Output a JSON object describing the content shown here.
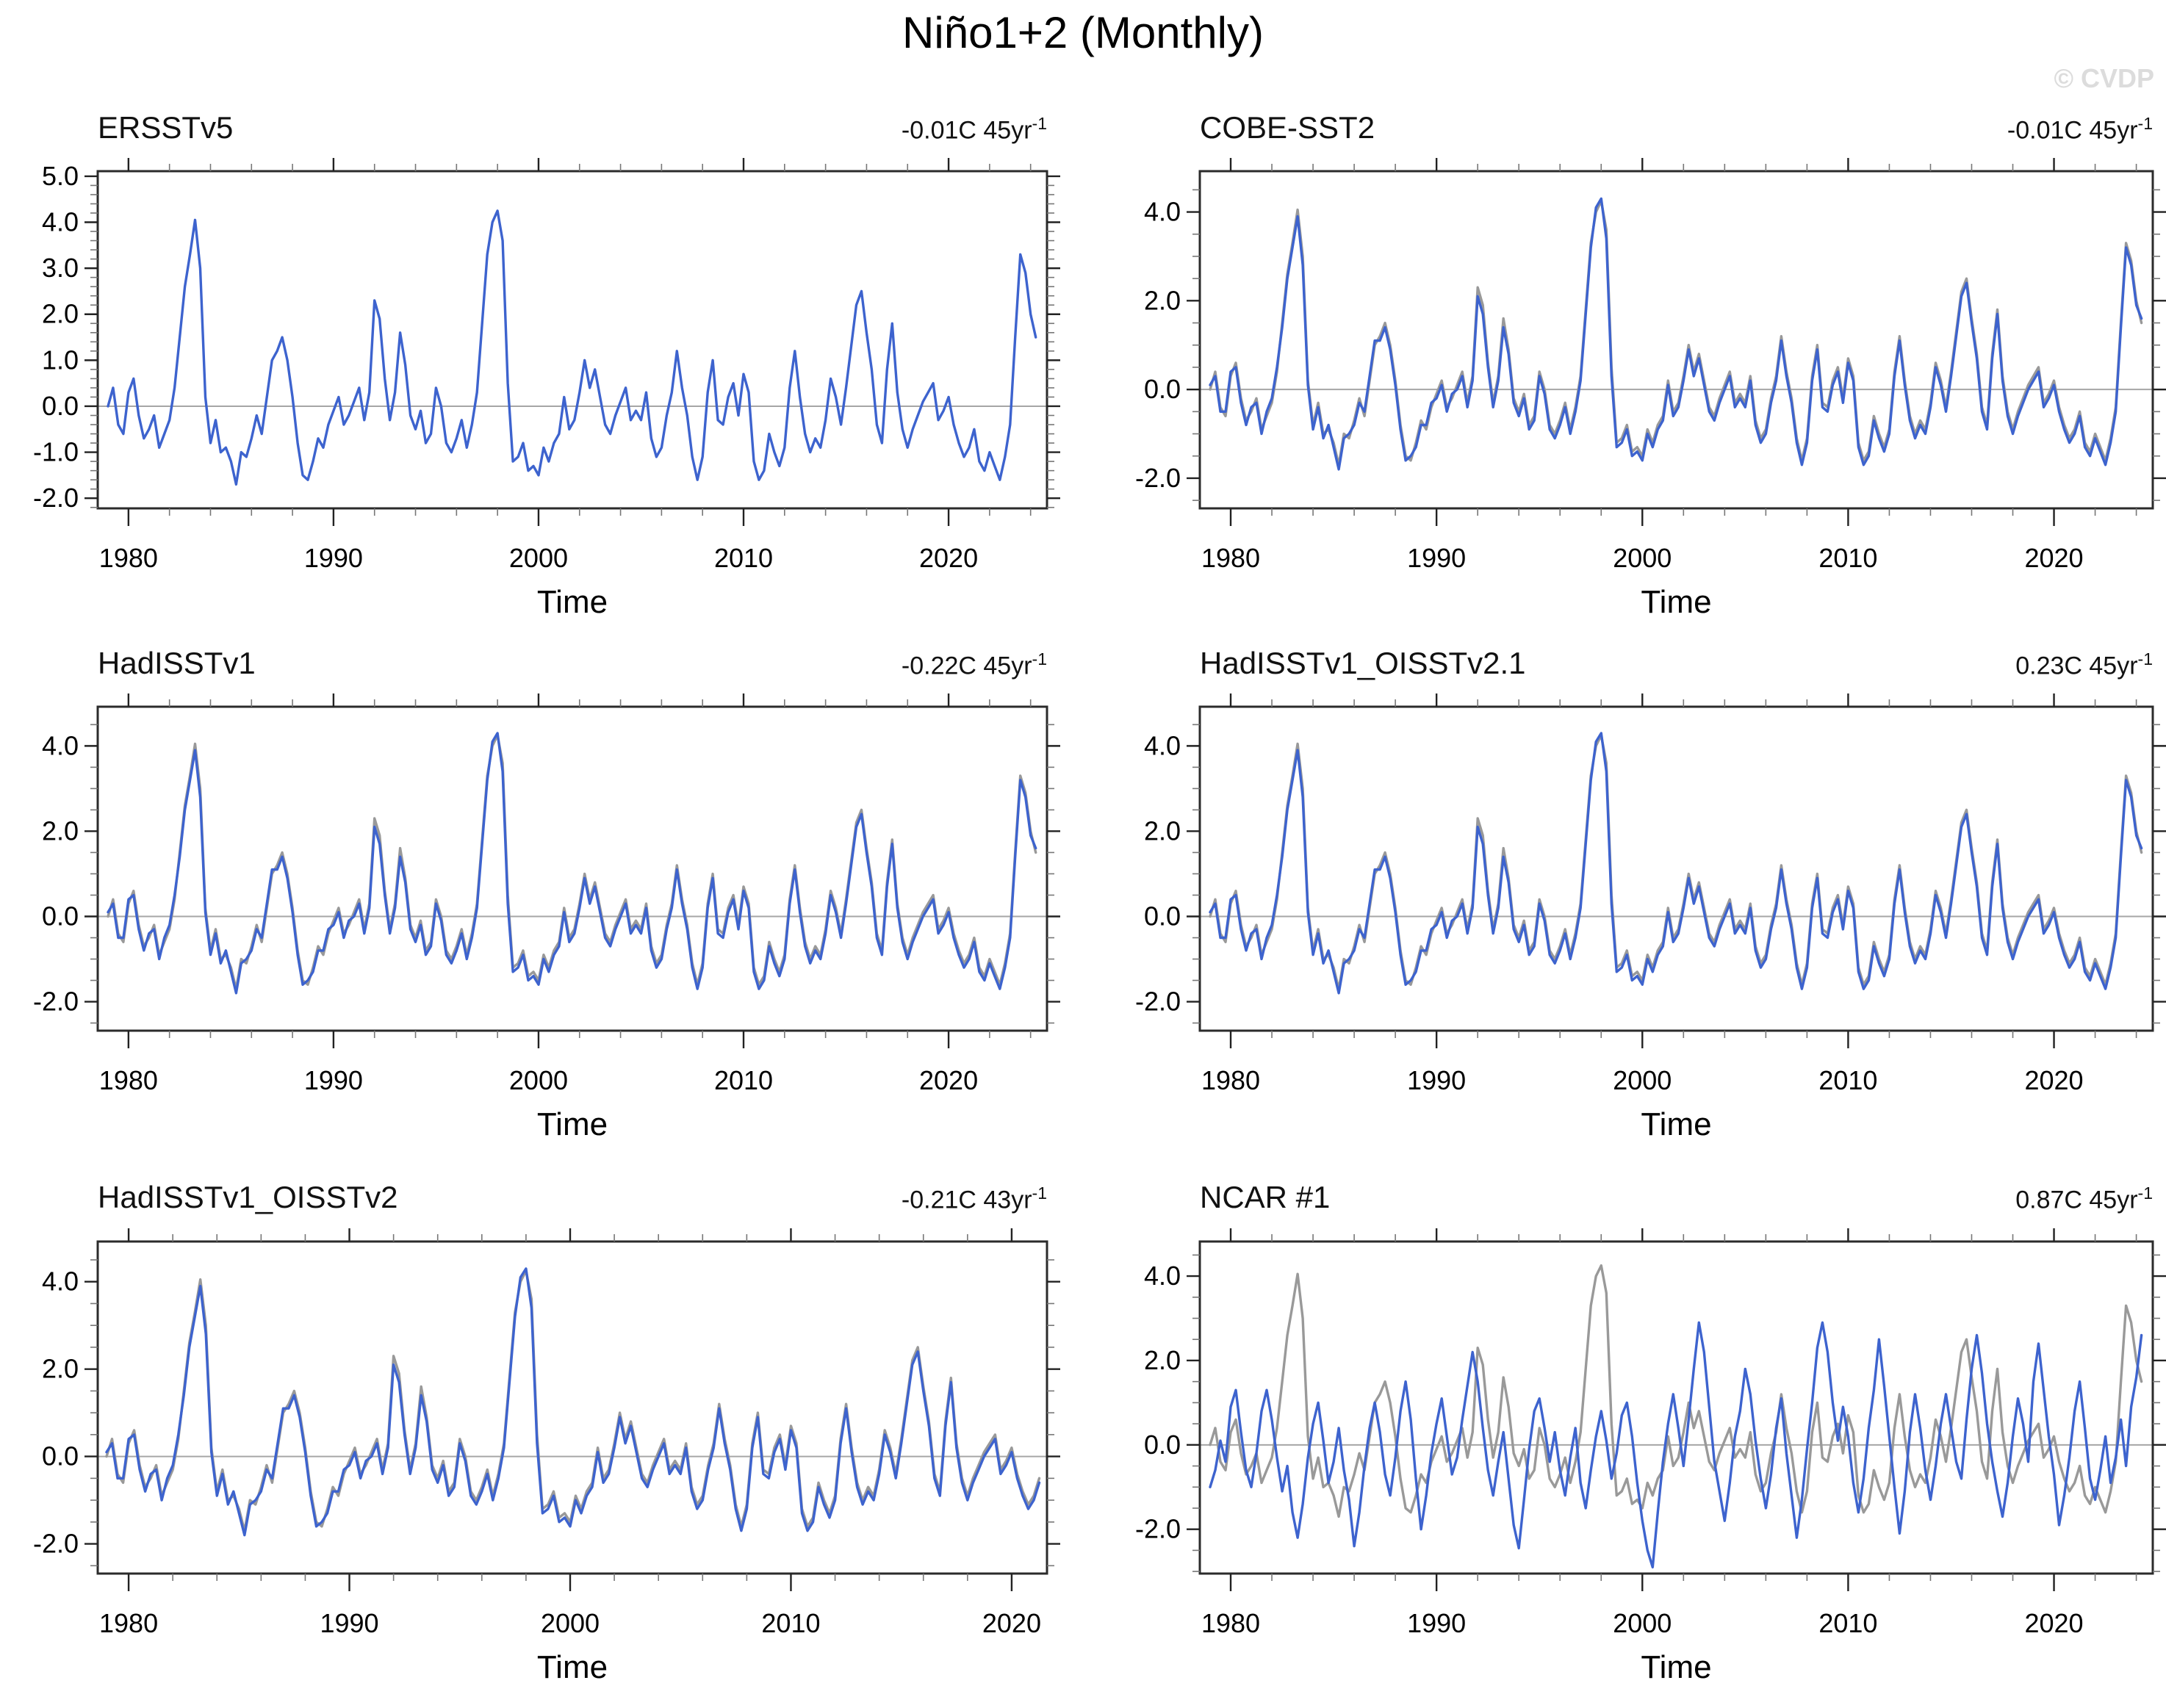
{
  "title": "Niño1+2 (Monthly)",
  "watermark": "© CVDP",
  "xlabel": "Time",
  "colors": {
    "line_blue": "#3D63CE",
    "line_gray": "#999999",
    "zero_line": "#a6a6a6",
    "frame": "#2b2b2b",
    "major_tick": "#222222",
    "minor_tick": "#777777",
    "tick_label": "#000000",
    "watermark": "#dcdcdc"
  },
  "chart_data": {
    "type": "line",
    "x_start": 1979.0,
    "x_step": 0.25,
    "x_unit": "year",
    "y_unit": "C",
    "series": {
      "reference_obs": [
        0.0,
        0.4,
        -0.4,
        -0.6,
        0.3,
        0.6,
        -0.2,
        -0.7,
        -0.5,
        -0.2,
        -0.9,
        -0.6,
        -0.3,
        0.4,
        1.5,
        2.6,
        3.3,
        4.05,
        3.0,
        0.2,
        -0.8,
        -0.3,
        -1.0,
        -0.9,
        -1.2,
        -1.7,
        -1.0,
        -1.1,
        -0.7,
        -0.2,
        -0.6,
        0.2,
        1.0,
        1.2,
        1.5,
        1.0,
        0.2,
        -0.8,
        -1.5,
        -1.6,
        -1.2,
        -0.7,
        -0.9,
        -0.4,
        -0.1,
        0.2,
        -0.4,
        -0.2,
        0.1,
        0.4,
        -0.3,
        0.3,
        2.3,
        1.9,
        0.6,
        -0.3,
        0.3,
        1.6,
        0.9,
        -0.2,
        -0.5,
        -0.1,
        -0.8,
        -0.6,
        0.4,
        0.0,
        -0.8,
        -1.0,
        -0.7,
        -0.3,
        -0.9,
        -0.4,
        0.3,
        1.8,
        3.3,
        4.0,
        4.25,
        3.6,
        0.5,
        -1.2,
        -1.1,
        -0.8,
        -1.4,
        -1.3,
        -1.5,
        -0.9,
        -1.2,
        -0.8,
        -0.6,
        0.2,
        -0.5,
        -0.3,
        0.3,
        1.0,
        0.4,
        0.8,
        0.2,
        -0.4,
        -0.6,
        -0.2,
        0.1,
        0.4,
        -0.3,
        -0.1,
        -0.3,
        0.3,
        -0.7,
        -1.1,
        -0.9,
        -0.2,
        0.3,
        1.2,
        0.4,
        -0.2,
        -1.1,
        -1.6,
        -1.1,
        0.3,
        1.0,
        -0.3,
        -0.4,
        0.2,
        0.5,
        -0.2,
        0.7,
        0.3,
        -1.2,
        -1.6,
        -1.4,
        -0.6,
        -1.0,
        -1.3,
        -0.9,
        0.4,
        1.2,
        0.2,
        -0.6,
        -1.0,
        -0.7,
        -0.9,
        -0.3,
        0.6,
        0.2,
        -0.4,
        0.4,
        1.3,
        2.2,
        2.5,
        1.6,
        0.8,
        -0.4,
        -0.8,
        0.8,
        1.8,
        0.3,
        -0.5,
        -0.9,
        -0.5,
        -0.2,
        0.1,
        0.3,
        0.5,
        -0.3,
        -0.1,
        0.2,
        -0.4,
        -0.8,
        -1.1,
        -0.9,
        -0.5,
        -1.2,
        -1.4,
        -1.0,
        -1.3,
        -1.6,
        -1.1,
        -0.4,
        1.5,
        3.3,
        2.9,
        2.0,
        1.5
      ],
      "obs_variant": [
        0.1,
        0.3,
        -0.5,
        -0.5,
        0.4,
        0.5,
        -0.3,
        -0.8,
        -0.4,
        -0.3,
        -1.0,
        -0.5,
        -0.2,
        0.5,
        1.4,
        2.5,
        3.2,
        3.9,
        2.8,
        0.1,
        -0.9,
        -0.4,
        -1.1,
        -0.8,
        -1.3,
        -1.8,
        -1.1,
        -1.0,
        -0.8,
        -0.3,
        -0.5,
        0.3,
        1.1,
        1.1,
        1.4,
        0.9,
        0.1,
        -0.9,
        -1.6,
        -1.5,
        -1.3,
        -0.8,
        -0.8,
        -0.3,
        -0.2,
        0.1,
        -0.5,
        -0.1,
        0.0,
        0.3,
        -0.4,
        0.2,
        2.1,
        1.7,
        0.5,
        -0.4,
        0.2,
        1.4,
        0.8,
        -0.3,
        -0.6,
        -0.2,
        -0.9,
        -0.7,
        0.3,
        -0.1,
        -0.9,
        -1.1,
        -0.8,
        -0.4,
        -1.0,
        -0.5,
        0.2,
        1.7,
        3.2,
        4.1,
        4.3,
        3.4,
        0.3,
        -1.3,
        -1.2,
        -0.9,
        -1.5,
        -1.4,
        -1.6,
        -1.0,
        -1.3,
        -0.9,
        -0.7,
        0.1,
        -0.6,
        -0.4,
        0.2,
        0.9,
        0.3,
        0.7,
        0.1,
        -0.5,
        -0.7,
        -0.3,
        0.0,
        0.3,
        -0.4,
        -0.2,
        -0.4,
        0.2,
        -0.8,
        -1.2,
        -1.0,
        -0.3,
        0.2,
        1.1,
        0.3,
        -0.3,
        -1.2,
        -1.7,
        -1.2,
        0.2,
        0.9,
        -0.4,
        -0.5,
        0.1,
        0.4,
        -0.3,
        0.6,
        0.2,
        -1.3,
        -1.7,
        -1.5,
        -0.7,
        -1.1,
        -1.4,
        -1.0,
        0.3,
        1.1,
        0.1,
        -0.7,
        -1.1,
        -0.8,
        -1.0,
        -0.4,
        0.5,
        0.1,
        -0.5,
        0.3,
        1.2,
        2.1,
        2.4,
        1.5,
        0.7,
        -0.5,
        -0.9,
        0.7,
        1.7,
        0.2,
        -0.6,
        -1.0,
        -0.6,
        -0.3,
        0.0,
        0.2,
        0.4,
        -0.4,
        -0.2,
        0.1,
        -0.5,
        -0.9,
        -1.2,
        -1.0,
        -0.6,
        -1.3,
        -1.5,
        -1.1,
        -1.4,
        -1.7,
        -1.2,
        -0.5,
        1.4,
        3.2,
        2.8,
        1.9,
        1.6
      ],
      "ncar1_model": [
        -1.0,
        -0.6,
        0.1,
        -0.4,
        0.9,
        1.3,
        0.3,
        -0.6,
        -1.0,
        -0.2,
        0.8,
        1.3,
        0.6,
        -0.3,
        -1.1,
        -0.5,
        -1.6,
        -2.2,
        -1.4,
        -0.3,
        0.5,
        1.0,
        0.1,
        -0.9,
        -0.4,
        0.4,
        -0.6,
        -1.3,
        -2.4,
        -1.6,
        -0.5,
        0.4,
        1.0,
        0.3,
        -0.7,
        -1.2,
        -0.3,
        0.8,
        1.5,
        0.6,
        -0.8,
        -2.0,
        -1.2,
        -0.2,
        0.5,
        1.1,
        0.2,
        -0.7,
        -0.3,
        0.6,
        1.4,
        2.2,
        1.5,
        0.4,
        -0.6,
        -1.2,
        -0.4,
        0.3,
        -0.8,
        -1.9,
        -2.45,
        -1.3,
        -0.1,
        0.8,
        1.1,
        0.4,
        -0.4,
        0.3,
        -0.6,
        -1.2,
        -0.3,
        0.4,
        -0.9,
        -1.5,
        -0.6,
        0.2,
        0.8,
        0.1,
        -0.8,
        -0.2,
        0.7,
        1.0,
        0.2,
        -0.9,
        -1.8,
        -2.5,
        -2.9,
        -1.6,
        -0.4,
        0.5,
        1.2,
        0.4,
        -0.5,
        0.6,
        1.8,
        2.9,
        2.2,
        0.9,
        -0.4,
        -1.1,
        -1.8,
        -0.9,
        0.2,
        0.8,
        1.8,
        1.2,
        0.1,
        -0.8,
        -1.5,
        -0.7,
        0.4,
        1.1,
        -0.2,
        -1.2,
        -2.2,
        -1.3,
        -0.1,
        1.0,
        2.3,
        2.9,
        2.2,
        1.0,
        0.1,
        0.9,
        0.2,
        -0.9,
        -1.6,
        -0.8,
        0.4,
        1.3,
        2.5,
        1.4,
        0.2,
        -1.0,
        -2.1,
        -1.1,
        0.3,
        1.2,
        0.4,
        -0.6,
        -1.3,
        -0.5,
        0.5,
        1.2,
        0.4,
        -0.4,
        -0.8,
        0.6,
        1.8,
        2.6,
        1.7,
        0.5,
        -0.4,
        -1.1,
        -1.7,
        -0.9,
        0.2,
        1.1,
        0.5,
        -0.4,
        1.5,
        2.4,
        1.3,
        0.2,
        -0.7,
        -1.9,
        -1.2,
        -0.3,
        0.8,
        1.5,
        0.4,
        -0.8,
        -1.3,
        -0.6,
        0.2,
        -0.9,
        -0.3,
        0.6,
        -0.5,
        0.9,
        1.6,
        2.6
      ],
      "blue_series_color": "#3D63CE",
      "gray_series_color": "#999999"
    },
    "panels": [
      {
        "name": "ERSSTv5",
        "trend": "-0.01C 45yr",
        "trend_sup": "-1",
        "blue": "reference_obs",
        "gray": null,
        "xlim": [
          1978.5,
          2024.8
        ],
        "ylim": [
          -2.22,
          5.11
        ],
        "yticks": [
          5,
          4,
          3,
          2,
          1,
          0,
          -1,
          -2
        ],
        "ytick_labels": [
          "5.0",
          "4.0",
          "3.0",
          "2.0",
          "1.0",
          "0.0",
          "-1.0",
          "-2.0"
        ],
        "y_minor_step": 0.2,
        "xticks": [
          1980,
          1990,
          2000,
          2010,
          2020
        ],
        "xtick_labels": [
          "1980",
          "1990",
          "2000",
          "2010",
          "2020"
        ],
        "x_minor_step": 2
      },
      {
        "name": "COBE-SST2",
        "trend": "-0.01C 45yr",
        "trend_sup": "-1",
        "blue": "obs_variant",
        "gray": "reference_obs",
        "xlim": [
          1978.5,
          2024.8
        ],
        "ylim": [
          -2.68,
          4.92
        ],
        "yticks": [
          4,
          2,
          0,
          -2
        ],
        "ytick_labels": [
          "4.0",
          "2.0",
          "0.0",
          "-2.0"
        ],
        "y_minor_step": 0.5,
        "xticks": [
          1980,
          1990,
          2000,
          2010,
          2020
        ],
        "xtick_labels": [
          "1980",
          "1990",
          "2000",
          "2010",
          "2020"
        ],
        "x_minor_step": 2
      },
      {
        "name": "HadISSTv1",
        "trend": "-0.22C 45yr",
        "trend_sup": "-1",
        "blue": "obs_variant",
        "gray": "reference_obs",
        "xlim": [
          1978.5,
          2024.8
        ],
        "ylim": [
          -2.68,
          4.92
        ],
        "yticks": [
          4,
          2,
          0,
          -2
        ],
        "ytick_labels": [
          "4.0",
          "2.0",
          "0.0",
          "-2.0"
        ],
        "y_minor_step": 0.5,
        "xticks": [
          1980,
          1990,
          2000,
          2010,
          2020
        ],
        "xtick_labels": [
          "1980",
          "1990",
          "2000",
          "2010",
          "2020"
        ],
        "x_minor_step": 2
      },
      {
        "name": "HadISSTv1_OISSTv2.1",
        "trend": "0.23C 45yr",
        "trend_sup": "-1",
        "blue": "obs_variant",
        "gray": "reference_obs",
        "xlim": [
          1978.5,
          2024.8
        ],
        "ylim": [
          -2.68,
          4.92
        ],
        "yticks": [
          4,
          2,
          0,
          -2
        ],
        "ytick_labels": [
          "4.0",
          "2.0",
          "0.0",
          "-2.0"
        ],
        "y_minor_step": 0.5,
        "xticks": [
          1980,
          1990,
          2000,
          2010,
          2020
        ],
        "xtick_labels": [
          "1980",
          "1990",
          "2000",
          "2010",
          "2020"
        ],
        "x_minor_step": 2
      },
      {
        "name": "HadISSTv1_OISSTv2",
        "trend": "-0.21C 43yr",
        "trend_sup": "-1",
        "blue": "obs_variant",
        "gray": "reference_obs",
        "xlim": [
          1978.6,
          2021.6
        ],
        "ylim": [
          -2.68,
          4.92
        ],
        "yticks": [
          4,
          2,
          0,
          -2
        ],
        "ytick_labels": [
          "4.0",
          "2.0",
          "0.0",
          "-2.0"
        ],
        "y_minor_step": 0.5,
        "xticks": [
          1980,
          1990,
          2000,
          2010,
          2020
        ],
        "xtick_labels": [
          "1980",
          "1990",
          "2000",
          "2010",
          "2020"
        ],
        "x_minor_step": 2
      },
      {
        "name": "NCAR #1",
        "trend": "0.87C 45yr",
        "trend_sup": "-1",
        "blue": "ncar1_model",
        "gray": "reference_obs",
        "xlim": [
          1978.5,
          2024.8
        ],
        "ylim": [
          -3.05,
          4.82
        ],
        "yticks": [
          4,
          2,
          0,
          -2
        ],
        "ytick_labels": [
          "4.0",
          "2.0",
          "0.0",
          "-2.0"
        ],
        "y_minor_step": 0.5,
        "xticks": [
          1980,
          1990,
          2000,
          2010,
          2020
        ],
        "xtick_labels": [
          "1980",
          "1990",
          "2000",
          "2010",
          "2020"
        ],
        "x_minor_step": 2
      }
    ]
  }
}
